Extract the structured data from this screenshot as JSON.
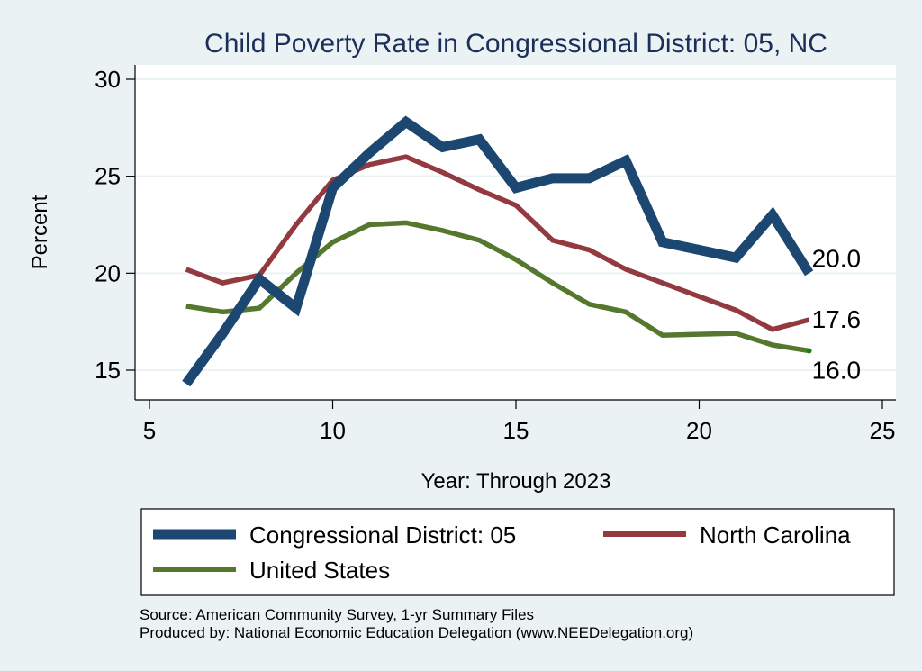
{
  "chart_data": {
    "type": "line",
    "title": "Child Poverty Rate in Congressional District:  05, NC",
    "xlabel": "Year: Through 2023",
    "ylabel": "Percent",
    "xlim": [
      4.6,
      25.3
    ],
    "ylim": [
      13.4,
      30.3
    ],
    "xticks": [
      5,
      10,
      15,
      20,
      25
    ],
    "yticks": [
      15,
      20,
      25,
      30
    ],
    "grid": "horizontal",
    "legend_position": "bottom",
    "series": [
      {
        "name": "Congressional District:  05",
        "color": "#1b4770",
        "x": [
          6,
          7,
          8,
          9,
          10,
          11,
          12,
          13,
          14,
          15,
          16,
          17,
          18,
          19,
          21,
          22,
          23
        ],
        "values": [
          14.3,
          16.9,
          19.7,
          18.2,
          24.4,
          26.2,
          27.8,
          26.5,
          26.9,
          24.4,
          24.9,
          24.9,
          25.8,
          21.6,
          20.8,
          23.0,
          20.0
        ],
        "end_label": "20.0"
      },
      {
        "name": "North Carolina",
        "color": "#923a3f",
        "x": [
          6,
          7,
          8,
          9,
          10,
          11,
          12,
          13,
          14,
          15,
          16,
          17,
          18,
          19,
          21,
          22,
          23
        ],
        "values": [
          20.2,
          19.5,
          19.9,
          22.5,
          24.8,
          25.6,
          26.0,
          25.2,
          24.3,
          23.5,
          21.7,
          21.2,
          20.2,
          19.5,
          18.1,
          17.1,
          17.6
        ],
        "end_label": "17.6"
      },
      {
        "name": "United States",
        "color": "#55782e",
        "x": [
          6,
          7,
          8,
          9,
          10,
          11,
          12,
          13,
          14,
          15,
          16,
          17,
          18,
          19,
          21,
          22,
          23
        ],
        "values": [
          18.3,
          18.0,
          18.2,
          20.0,
          21.6,
          22.5,
          22.6,
          22.2,
          21.7,
          20.7,
          19.5,
          18.4,
          18.0,
          16.8,
          16.9,
          16.3,
          16.0
        ],
        "end_label": "16.0"
      }
    ],
    "notes": [
      "Source: American Community Survey, 1-yr Summary Files",
      "Produced by: National Economic Education Delegation (www.NEEDelegation.org)"
    ]
  }
}
